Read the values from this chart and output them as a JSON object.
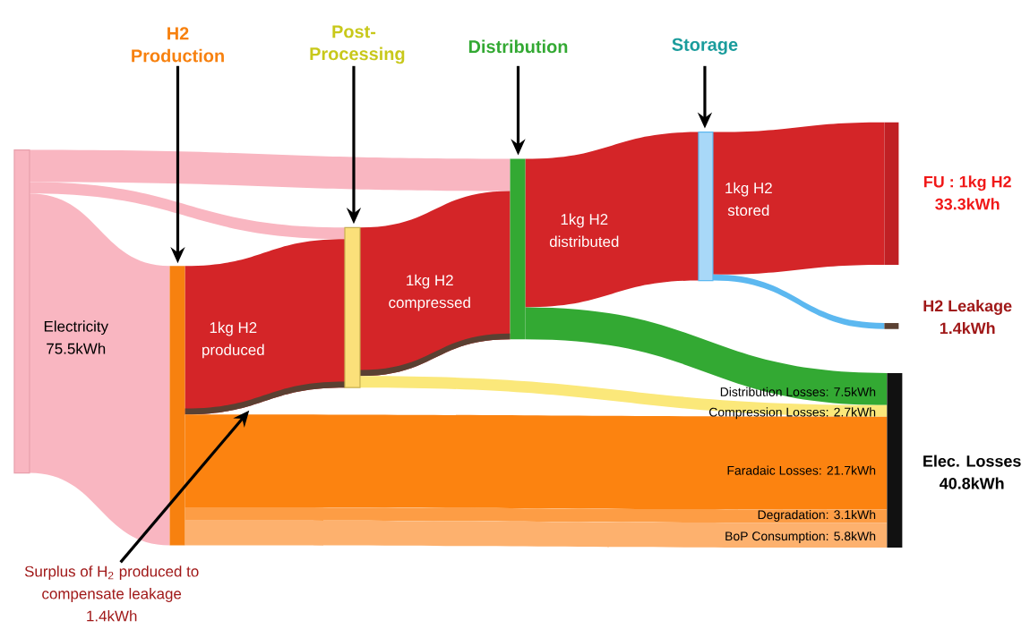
{
  "chart_data": {
    "type": "other",
    "categories": [
      "Electricity",
      "FU : 1kg H2",
      "H2 Leakage",
      "Elec. Losses",
      "Distribution Losses",
      "Compression Losses",
      "Faradaic Losses",
      "Degradation",
      "BoP Consumption",
      "Surplus of H$_{2}$ produced to compensate leakage"
    ],
    "values": [
      75.5,
      33.3,
      1.4,
      40.8,
      7.5,
      2.7,
      21.7,
      3.1,
      5.8,
      1.4
    ],
    "value_labels": [
      "75.5kWh",
      "33.3kWh",
      "1.4kWh",
      "40.8kWh",
      ": 7.5kWh",
      ": 2.7kWh",
      ": 21.7kWh",
      ": 3.1kWh",
      ": 5.8kWh",
      "1.4kWh"
    ],
    "colors": [
      "#f9b6c1",
      "#d42528",
      "#5a4032",
      "#111111",
      "#33a933",
      "#fbe87a",
      "#fc8310",
      "#fd9d45",
      "#fdb16e",
      "#5a4032"
    ],
    "annotations": [
      "H2 Production",
      "Post-Processing",
      "Distribution",
      "Storage",
      "1kg H2 produced",
      "1kg H2 compressed",
      "1kg H2 distributed",
      "1kg H2 stored"
    ]
  }
}
